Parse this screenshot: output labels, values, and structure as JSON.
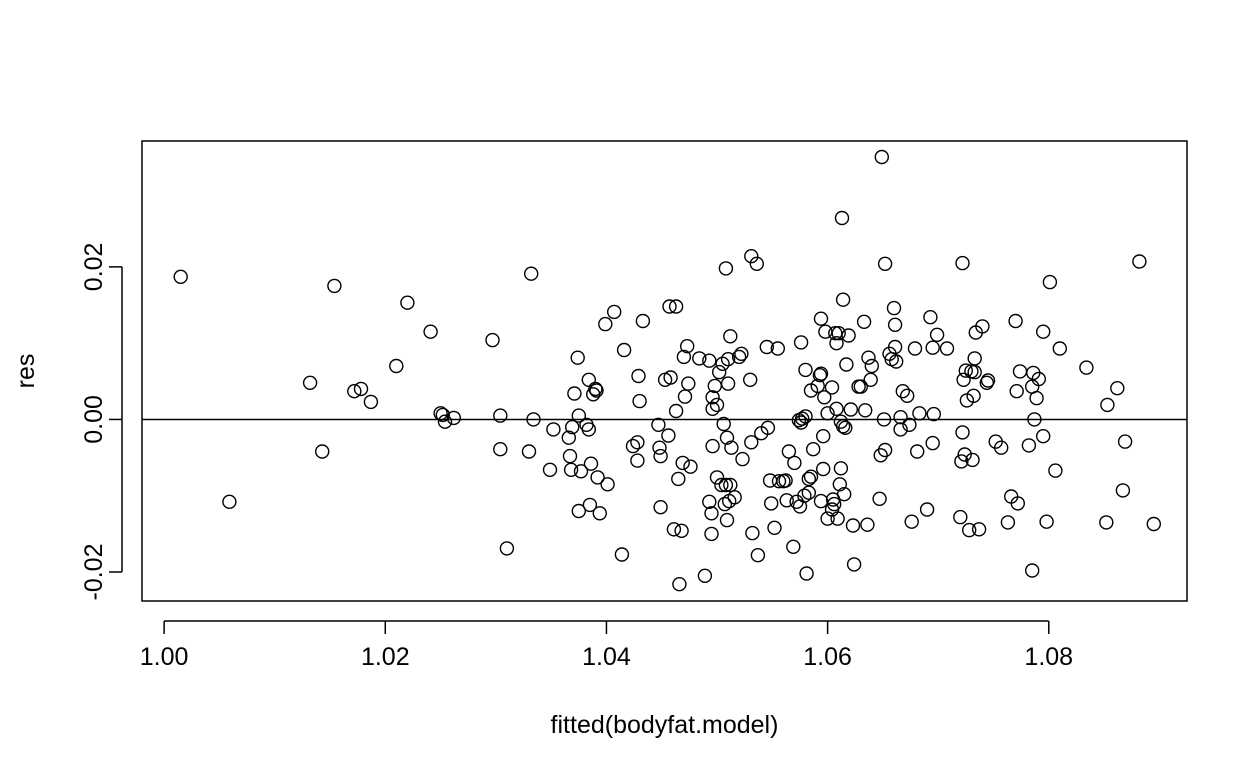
{
  "chart_data": {
    "type": "scatter",
    "title": "",
    "xlabel": "fitted(bodyfat.model)",
    "ylabel": "res",
    "xlim": [
      0.998,
      1.0925
    ],
    "ylim": [
      -0.0238,
      0.0365
    ],
    "xticks": [
      1.0,
      1.02,
      1.04,
      1.06,
      1.08
    ],
    "xtick_labels": [
      "1.00",
      "1.02",
      "1.04",
      "1.06",
      "1.08"
    ],
    "yticks": [
      -0.02,
      0.0,
      0.02
    ],
    "ytick_labels": [
      "-0.02",
      "0.00",
      "0.02"
    ],
    "reference_line": {
      "orientation": "horizontal",
      "y": 0.0
    },
    "grid": false,
    "marker": "open-circle",
    "points": [
      [
        1.0015,
        0.0187
      ],
      [
        1.0059,
        -0.0108
      ],
      [
        1.0132,
        0.0048
      ],
      [
        1.0143,
        -0.0042
      ],
      [
        1.0154,
        0.0175
      ],
      [
        1.0172,
        0.0037
      ],
      [
        1.0178,
        0.004
      ],
      [
        1.0187,
        0.0023
      ],
      [
        1.021,
        0.007
      ],
      [
        1.022,
        0.0153
      ],
      [
        1.0241,
        0.0115
      ],
      [
        1.025,
        0.0008
      ],
      [
        1.0252,
        0.0006
      ],
      [
        1.0254,
        -0.0003
      ],
      [
        1.0262,
        0.0002
      ],
      [
        1.0297,
        0.0104
      ],
      [
        1.0304,
        0.0005
      ],
      [
        1.0304,
        -0.0039
      ],
      [
        1.031,
        -0.0169
      ],
      [
        1.033,
        -0.0042
      ],
      [
        1.0332,
        0.0191
      ],
      [
        1.0334,
        0.0
      ],
      [
        1.0349,
        -0.0066
      ],
      [
        1.0352,
        -0.0013
      ],
      [
        1.0366,
        -0.0024
      ],
      [
        1.0367,
        -0.0048
      ],
      [
        1.0368,
        -0.0066
      ],
      [
        1.0369,
        -0.001
      ],
      [
        1.0371,
        0.0034
      ],
      [
        1.0374,
        0.0081
      ],
      [
        1.0375,
        0.0005
      ],
      [
        1.0375,
        -0.012
      ],
      [
        1.0377,
        -0.0068
      ],
      [
        1.0382,
        -0.0007
      ],
      [
        1.0384,
        0.0052
      ],
      [
        1.0384,
        -0.0013
      ],
      [
        1.0385,
        -0.0112
      ],
      [
        1.0386,
        -0.0058
      ],
      [
        1.0388,
        0.0033
      ],
      [
        1.039,
        0.004
      ],
      [
        1.0391,
        0.0038
      ],
      [
        1.0392,
        -0.0076
      ],
      [
        1.0394,
        -0.0123
      ],
      [
        1.0399,
        0.0125
      ],
      [
        1.0401,
        -0.0085
      ],
      [
        1.0407,
        0.0141
      ],
      [
        1.0414,
        -0.0177
      ],
      [
        1.0416,
        0.0091
      ],
      [
        1.0424,
        -0.0035
      ],
      [
        1.0428,
        -0.003
      ],
      [
        1.0428,
        -0.0054
      ],
      [
        1.0429,
        0.0057
      ],
      [
        1.043,
        0.0024
      ],
      [
        1.0433,
        0.0129
      ],
      [
        1.0447,
        -0.0007
      ],
      [
        1.0448,
        -0.0037
      ],
      [
        1.0449,
        -0.0048
      ],
      [
        1.0449,
        -0.0115
      ],
      [
        1.0453,
        0.0052
      ],
      [
        1.0456,
        -0.0021
      ],
      [
        1.0457,
        0.0148
      ],
      [
        1.0458,
        0.0055
      ],
      [
        1.0461,
        -0.0144
      ],
      [
        1.0463,
        0.0148
      ],
      [
        1.0463,
        0.0011
      ],
      [
        1.0465,
        -0.0078
      ],
      [
        1.0466,
        -0.0216
      ],
      [
        1.0468,
        -0.0146
      ],
      [
        1.0469,
        -0.0057
      ],
      [
        1.047,
        0.0082
      ],
      [
        1.0471,
        0.003
      ],
      [
        1.0473,
        0.0096
      ],
      [
        1.0474,
        0.0047
      ],
      [
        1.0476,
        -0.0062
      ],
      [
        1.0484,
        0.008
      ],
      [
        1.0489,
        -0.0205
      ],
      [
        1.0493,
        -0.0108
      ],
      [
        1.0493,
        0.0077
      ],
      [
        1.0495,
        -0.015
      ],
      [
        1.0495,
        -0.0123
      ],
      [
        1.0496,
        0.0029
      ],
      [
        1.0496,
        -0.0035
      ],
      [
        1.0496,
        0.0014
      ],
      [
        1.0498,
        0.0044
      ],
      [
        1.05,
        -0.0076
      ],
      [
        1.05,
        0.0019
      ],
      [
        1.0502,
        0.0062
      ],
      [
        1.0504,
        -0.0086
      ],
      [
        1.0505,
        0.0073
      ],
      [
        1.0506,
        -0.0006
      ],
      [
        1.0507,
        -0.0111
      ],
      [
        1.0508,
        0.0198
      ],
      [
        1.0508,
        -0.0086
      ],
      [
        1.0509,
        -0.0024
      ],
      [
        1.0509,
        -0.0132
      ],
      [
        1.051,
        0.0079
      ],
      [
        1.051,
        0.0047
      ],
      [
        1.0511,
        -0.0107
      ],
      [
        1.0512,
        -0.0086
      ],
      [
        1.0512,
        0.0109
      ],
      [
        1.0513,
        -0.0037
      ],
      [
        1.0516,
        -0.0102
      ],
      [
        1.052,
        0.0082
      ],
      [
        1.0522,
        0.0086
      ],
      [
        1.0523,
        -0.0052
      ],
      [
        1.053,
        0.0052
      ],
      [
        1.0531,
        -0.003
      ],
      [
        1.0531,
        0.0214
      ],
      [
        1.0532,
        -0.0149
      ],
      [
        1.0536,
        0.0204
      ],
      [
        1.0537,
        -0.0178
      ],
      [
        1.054,
        -0.0018
      ],
      [
        1.0545,
        0.0095
      ],
      [
        1.0546,
        -0.0011
      ],
      [
        1.0548,
        -0.008
      ],
      [
        1.0549,
        -0.011
      ],
      [
        1.0552,
        -0.0142
      ],
      [
        1.0555,
        0.0093
      ],
      [
        1.0556,
        -0.0081
      ],
      [
        1.056,
        -0.0081
      ],
      [
        1.0562,
        -0.008
      ],
      [
        1.0563,
        -0.0106
      ],
      [
        1.0565,
        -0.0042
      ],
      [
        1.0569,
        -0.0167
      ],
      [
        1.057,
        -0.0057
      ],
      [
        1.0572,
        -0.0108
      ],
      [
        1.0574,
        -0.0001
      ],
      [
        1.0575,
        -0.0114
      ],
      [
        1.0576,
        -0.0004
      ],
      [
        1.0576,
        0.0101
      ],
      [
        1.0577,
        0.0001
      ],
      [
        1.0579,
        -0.01
      ],
      [
        1.058,
        0.0065
      ],
      [
        1.058,
        0.0004
      ],
      [
        1.0581,
        -0.0202
      ],
      [
        1.0583,
        -0.0096
      ],
      [
        1.0583,
        -0.0078
      ],
      [
        1.0585,
        -0.0075
      ],
      [
        1.0585,
        0.0038
      ],
      [
        1.0587,
        -0.0039
      ],
      [
        1.0591,
        0.0044
      ],
      [
        1.0593,
        0.0058
      ],
      [
        1.0594,
        -0.0107
      ],
      [
        1.0594,
        0.0132
      ],
      [
        1.0594,
        0.006
      ],
      [
        1.0596,
        -0.0022
      ],
      [
        1.0596,
        -0.0065
      ],
      [
        1.0597,
        0.0029
      ],
      [
        1.0598,
        0.0115
      ],
      [
        1.06,
        -0.013
      ],
      [
        1.06,
        0.0008
      ],
      [
        1.0604,
        0.0042
      ],
      [
        1.0604,
        -0.0118
      ],
      [
        1.0605,
        -0.0105
      ],
      [
        1.0606,
        -0.0111
      ],
      [
        1.0607,
        0.0113
      ],
      [
        1.0608,
        0.0014
      ],
      [
        1.0608,
        0.01
      ],
      [
        1.0609,
        -0.013
      ],
      [
        1.061,
        0.0113
      ],
      [
        1.0611,
        -0.0085
      ],
      [
        1.0612,
        -0.0003
      ],
      [
        1.0612,
        -0.0064
      ],
      [
        1.0613,
        0.0264
      ],
      [
        1.0614,
        -0.0009
      ],
      [
        1.0614,
        0.0157
      ],
      [
        1.0615,
        -0.0098
      ],
      [
        1.0616,
        -0.0011
      ],
      [
        1.0617,
        0.0072
      ],
      [
        1.0619,
        0.011
      ],
      [
        1.0621,
        0.0013
      ],
      [
        1.0623,
        -0.0139
      ],
      [
        1.0624,
        -0.019
      ],
      [
        1.0628,
        0.0043
      ],
      [
        1.063,
        0.0043
      ],
      [
        1.0633,
        0.0128
      ],
      [
        1.0634,
        0.0012
      ],
      [
        1.0636,
        -0.0138
      ],
      [
        1.0637,
        0.0081
      ],
      [
        1.0639,
        0.0052
      ],
      [
        1.064,
        0.007
      ],
      [
        1.0647,
        -0.0104
      ],
      [
        1.0648,
        -0.0047
      ],
      [
        1.0649,
        0.0344
      ],
      [
        1.0651,
        0.0
      ],
      [
        1.0652,
        -0.004
      ],
      [
        1.0652,
        0.0204
      ],
      [
        1.0656,
        0.0086
      ],
      [
        1.0658,
        0.0079
      ],
      [
        1.066,
        0.0146
      ],
      [
        1.0661,
        0.0095
      ],
      [
        1.0661,
        0.0124
      ],
      [
        1.0662,
        0.0076
      ],
      [
        1.0666,
        -0.0013
      ],
      [
        1.0666,
        0.0003
      ],
      [
        1.0668,
        0.0037
      ],
      [
        1.0672,
        0.0031
      ],
      [
        1.0674,
        -0.0007
      ],
      [
        1.0676,
        -0.0134
      ],
      [
        1.0679,
        0.0093
      ],
      [
        1.0681,
        -0.0042
      ],
      [
        1.0683,
        0.0008
      ],
      [
        1.069,
        -0.0118
      ],
      [
        1.0693,
        0.0134
      ],
      [
        1.0695,
        -0.0031
      ],
      [
        1.0695,
        0.0094
      ],
      [
        1.0696,
        0.0007
      ],
      [
        1.0699,
        0.0111
      ],
      [
        1.0708,
        0.0093
      ],
      [
        1.072,
        -0.0128
      ],
      [
        1.0721,
        -0.0055
      ],
      [
        1.0722,
        0.0205
      ],
      [
        1.0722,
        -0.0017
      ],
      [
        1.0723,
        0.0052
      ],
      [
        1.0724,
        -0.0046
      ],
      [
        1.0725,
        0.0064
      ],
      [
        1.0726,
        0.0025
      ],
      [
        1.0728,
        -0.0145
      ],
      [
        1.073,
        0.0063
      ],
      [
        1.0731,
        -0.0053
      ],
      [
        1.0732,
        0.0031
      ],
      [
        1.0733,
        0.0062
      ],
      [
        1.0733,
        0.008
      ],
      [
        1.0734,
        0.0114
      ],
      [
        1.0737,
        -0.0144
      ],
      [
        1.074,
        0.0122
      ],
      [
        1.0744,
        0.0048
      ],
      [
        1.0745,
        0.0051
      ],
      [
        1.0752,
        -0.0029
      ],
      [
        1.0757,
        -0.0037
      ],
      [
        1.0763,
        -0.0135
      ],
      [
        1.0766,
        -0.0101
      ],
      [
        1.077,
        0.0129
      ],
      [
        1.0771,
        0.0037
      ],
      [
        1.0772,
        -0.011
      ],
      [
        1.0774,
        0.0063
      ],
      [
        1.0782,
        -0.0034
      ],
      [
        1.0785,
        0.0043
      ],
      [
        1.0785,
        -0.0198
      ],
      [
        1.0786,
        0.0061
      ],
      [
        1.0787,
        0.0
      ],
      [
        1.0789,
        0.0028
      ],
      [
        1.0791,
        0.0053
      ],
      [
        1.0795,
        -0.0022
      ],
      [
        1.0795,
        0.0115
      ],
      [
        1.0798,
        -0.0134
      ],
      [
        1.0801,
        0.018
      ],
      [
        1.0806,
        -0.0067
      ],
      [
        1.081,
        0.0093
      ],
      [
        1.0834,
        0.0068
      ],
      [
        1.0852,
        -0.0135
      ],
      [
        1.0853,
        0.0019
      ],
      [
        1.0862,
        0.0041
      ],
      [
        1.0867,
        -0.0093
      ],
      [
        1.0869,
        -0.0029
      ],
      [
        1.0882,
        0.0207
      ],
      [
        1.0895,
        -0.0137
      ]
    ]
  }
}
